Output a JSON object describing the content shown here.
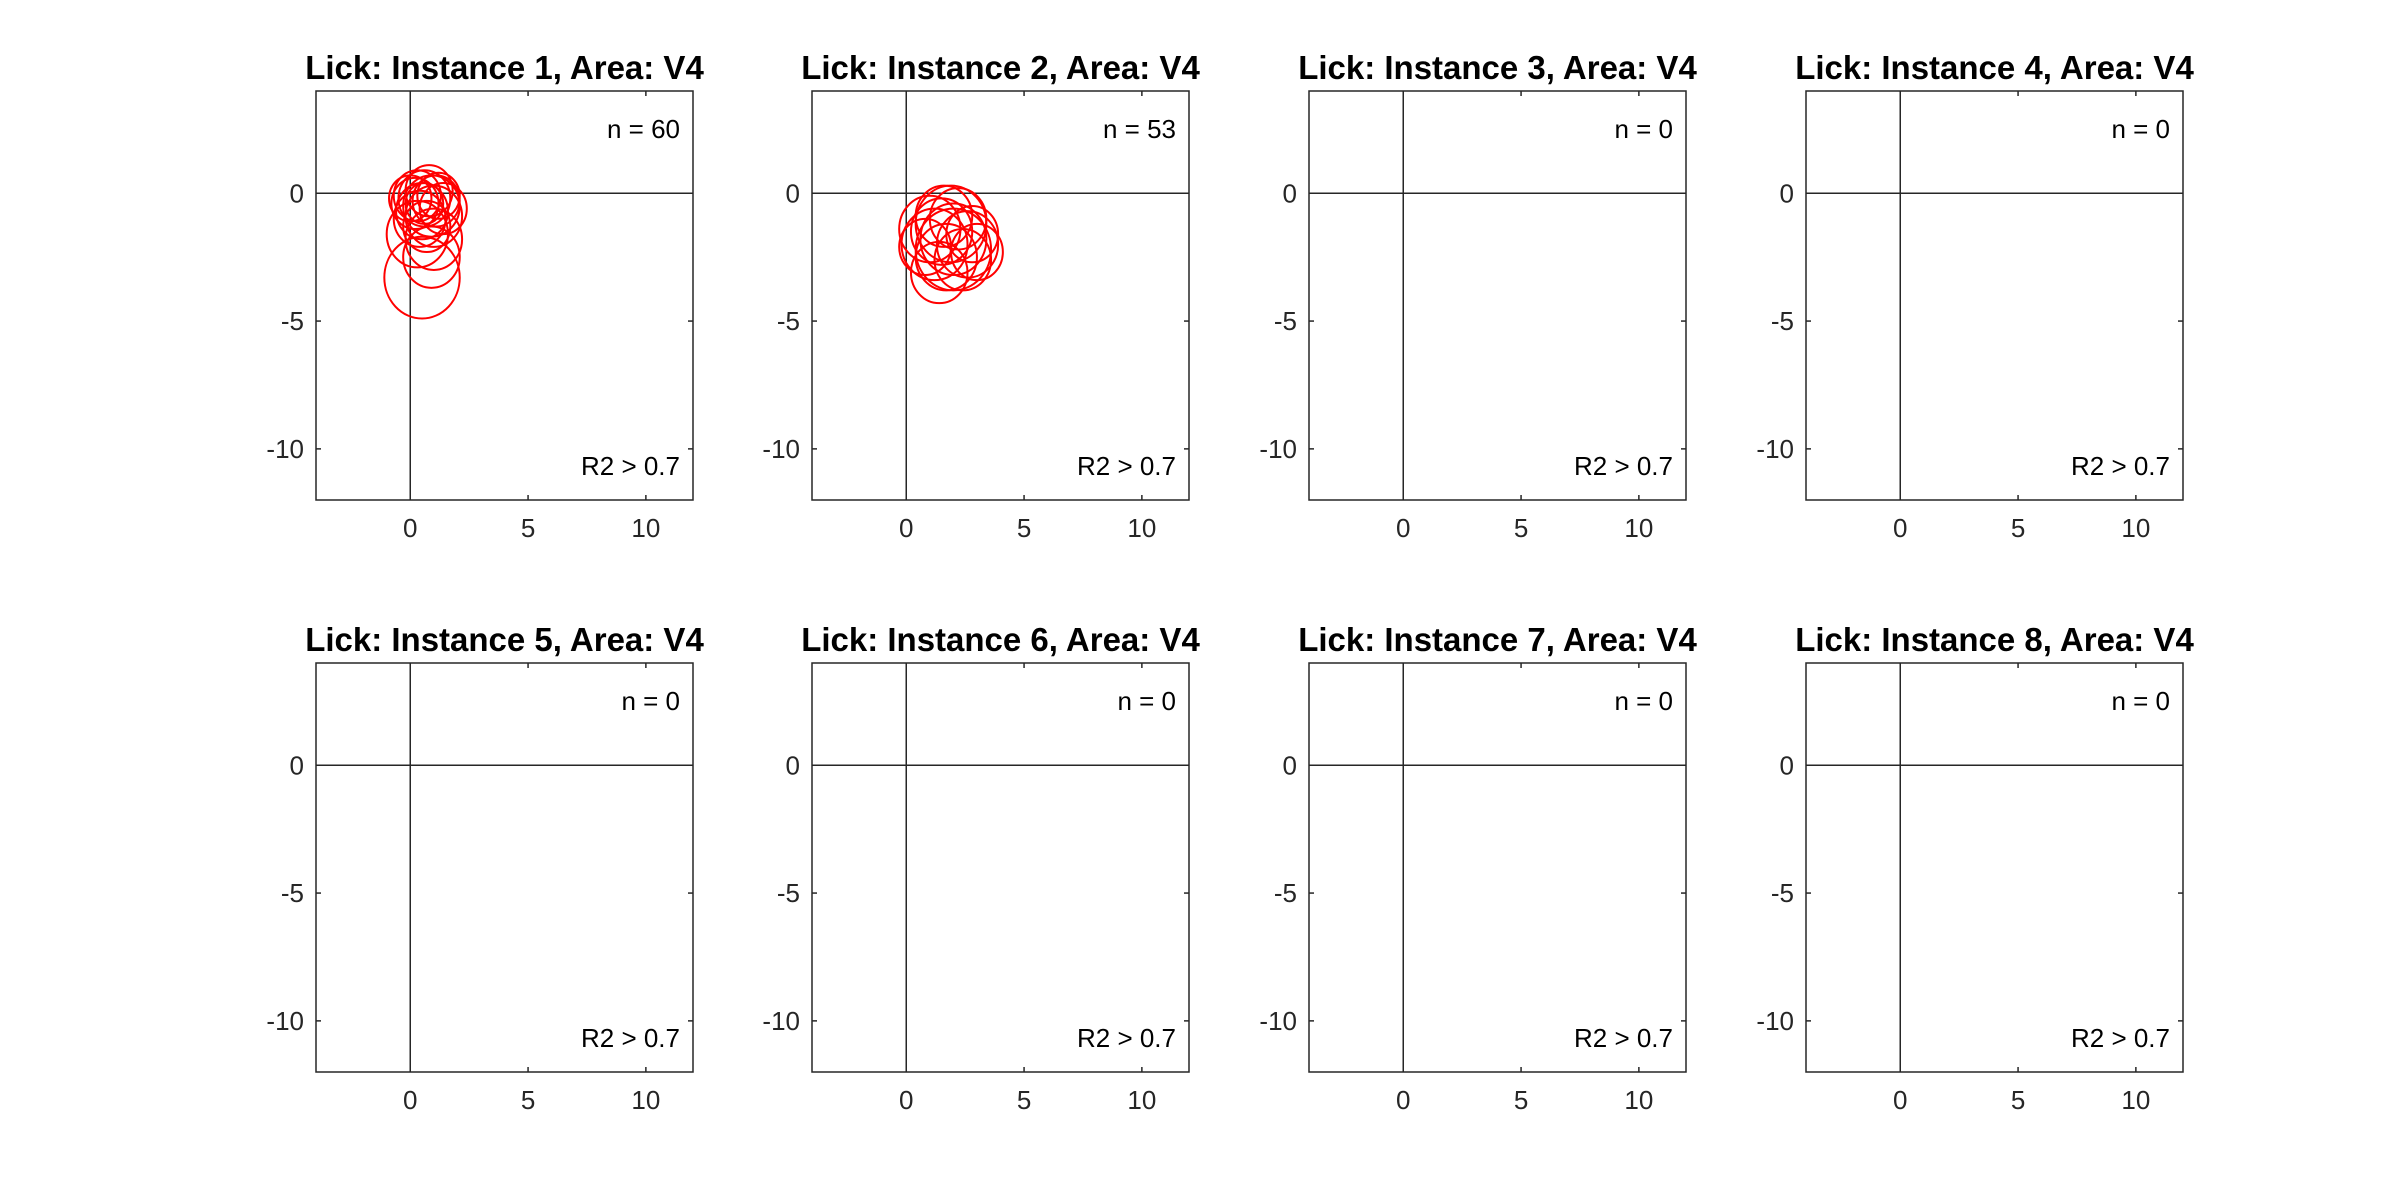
{
  "figure": {
    "background": "#ffffff",
    "axis_color": "#262626",
    "circle_color": "#ff0000",
    "annotation_r2": "R2 > 0.7"
  },
  "chart_data": [
    {
      "type": "scatter",
      "title": "Lick: Instance 1, Area: V4",
      "n_label": "n = 60",
      "r2_label": "R2 > 0.7",
      "xlim": [
        -4,
        12
      ],
      "ylim": [
        -12,
        4
      ],
      "xticks": [
        0,
        5,
        10
      ],
      "yticks": [
        -10,
        -5,
        0
      ],
      "circles": [
        {
          "cx": 0.6,
          "cy": -0.2,
          "r": 1.1
        },
        {
          "cx": 0.9,
          "cy": -0.5,
          "r": 1.2
        },
        {
          "cx": 0.3,
          "cy": -0.1,
          "r": 1.0
        },
        {
          "cx": 1.1,
          "cy": -0.3,
          "r": 1.0
        },
        {
          "cx": 0.5,
          "cy": -0.7,
          "r": 1.1
        },
        {
          "cx": 0.2,
          "cy": -0.4,
          "r": 1.0
        },
        {
          "cx": 0.8,
          "cy": 0.1,
          "r": 1.0
        },
        {
          "cx": 1.4,
          "cy": -0.6,
          "r": 1.0
        },
        {
          "cx": 0.4,
          "cy": -1.0,
          "r": 1.1
        },
        {
          "cx": 0.0,
          "cy": -0.2,
          "r": 0.9
        },
        {
          "cx": 1.0,
          "cy": -0.9,
          "r": 1.2
        },
        {
          "cx": 0.7,
          "cy": -1.3,
          "r": 1.0
        },
        {
          "cx": 0.3,
          "cy": -1.6,
          "r": 1.3
        },
        {
          "cx": 1.0,
          "cy": -1.8,
          "r": 1.2
        },
        {
          "cx": 0.9,
          "cy": -2.5,
          "r": 1.2
        },
        {
          "cx": 0.5,
          "cy": -3.3,
          "r": 1.6
        },
        {
          "cx": 0.6,
          "cy": -0.4,
          "r": 0.8
        },
        {
          "cx": 1.2,
          "cy": -0.1,
          "r": 0.9
        }
      ]
    },
    {
      "type": "scatter",
      "title": "Lick: Instance 2, Area: V4",
      "n_label": "n = 53",
      "r2_label": "R2 > 0.7",
      "xlim": [
        -4,
        12
      ],
      "ylim": [
        -12,
        4
      ],
      "xticks": [
        0,
        5,
        10
      ],
      "yticks": [
        -10,
        -5,
        0
      ],
      "circles": [
        {
          "cx": 1.5,
          "cy": -1.5,
          "r": 1.3
        },
        {
          "cx": 2.0,
          "cy": -1.8,
          "r": 1.4
        },
        {
          "cx": 2.6,
          "cy": -2.0,
          "r": 1.3
        },
        {
          "cx": 1.2,
          "cy": -2.0,
          "r": 1.4
        },
        {
          "cx": 2.2,
          "cy": -1.0,
          "r": 1.2
        },
        {
          "cx": 1.7,
          "cy": -2.5,
          "r": 1.3
        },
        {
          "cx": 2.8,
          "cy": -1.6,
          "r": 1.1
        },
        {
          "cx": 1.0,
          "cy": -1.4,
          "r": 1.3
        },
        {
          "cx": 2.4,
          "cy": -2.6,
          "r": 1.2
        },
        {
          "cx": 1.9,
          "cy": -1.2,
          "r": 1.5
        },
        {
          "cx": 1.4,
          "cy": -3.1,
          "r": 1.2
        },
        {
          "cx": 2.0,
          "cy": -2.2,
          "r": 1.6
        },
        {
          "cx": 3.0,
          "cy": -2.3,
          "r": 1.1
        },
        {
          "cx": 0.8,
          "cy": -2.1,
          "r": 1.1
        },
        {
          "cx": 1.6,
          "cy": -0.9,
          "r": 1.2
        }
      ]
    },
    {
      "type": "scatter",
      "title": "Lick: Instance 3, Area: V4",
      "n_label": "n = 0",
      "r2_label": "R2 > 0.7",
      "xlim": [
        -4,
        12
      ],
      "ylim": [
        -12,
        4
      ],
      "xticks": [
        0,
        5,
        10
      ],
      "yticks": [
        -10,
        -5,
        0
      ],
      "circles": []
    },
    {
      "type": "scatter",
      "title": "Lick: Instance 4, Area: V4",
      "n_label": "n = 0",
      "r2_label": "R2 > 0.7",
      "xlim": [
        -4,
        12
      ],
      "ylim": [
        -12,
        4
      ],
      "xticks": [
        0,
        5,
        10
      ],
      "yticks": [
        -10,
        -5,
        0
      ],
      "circles": []
    },
    {
      "type": "scatter",
      "title": "Lick: Instance 5, Area: V4",
      "n_label": "n = 0",
      "r2_label": "R2 > 0.7",
      "xlim": [
        -4,
        12
      ],
      "ylim": [
        -12,
        4
      ],
      "xticks": [
        0,
        5,
        10
      ],
      "yticks": [
        -10,
        -5,
        0
      ],
      "circles": []
    },
    {
      "type": "scatter",
      "title": "Lick: Instance 6, Area: V4",
      "n_label": "n = 0",
      "r2_label": "R2 > 0.7",
      "xlim": [
        -4,
        12
      ],
      "ylim": [
        -12,
        4
      ],
      "xticks": [
        0,
        5,
        10
      ],
      "yticks": [
        -10,
        -5,
        0
      ],
      "circles": []
    },
    {
      "type": "scatter",
      "title": "Lick: Instance 7, Area: V4",
      "n_label": "n = 0",
      "r2_label": "R2 > 0.7",
      "xlim": [
        -4,
        12
      ],
      "ylim": [
        -12,
        4
      ],
      "xticks": [
        0,
        5,
        10
      ],
      "yticks": [
        -10,
        -5,
        0
      ],
      "circles": []
    },
    {
      "type": "scatter",
      "title": "Lick: Instance 8, Area: V4",
      "n_label": "n = 0",
      "r2_label": "R2 > 0.7",
      "xlim": [
        -4,
        12
      ],
      "ylim": [
        -12,
        4
      ],
      "xticks": [
        0,
        5,
        10
      ],
      "yticks": [
        -10,
        -5,
        0
      ],
      "circles": []
    }
  ]
}
